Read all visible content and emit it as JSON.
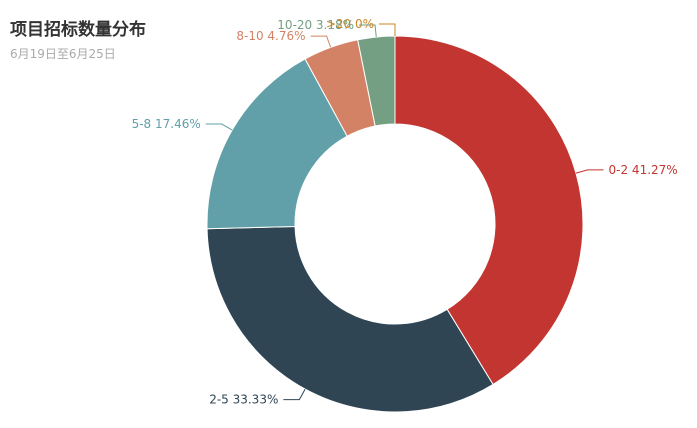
{
  "header": {
    "title": "项目招标数量分布",
    "subtitle": "6月19日至6月25日"
  },
  "chart_data": {
    "type": "pie",
    "variant": "donut",
    "title": "项目招标数量分布",
    "subtitle": "6月19日至6月25日",
    "legend": "none",
    "slices": [
      {
        "label": "0-2",
        "percent": 41.27,
        "display": "0-2 41.27%",
        "color": "#c23531"
      },
      {
        "label": "2-5",
        "percent": 33.33,
        "display": "2-5 33.33%",
        "color": "#2f4554"
      },
      {
        "label": "5-8",
        "percent": 17.46,
        "display": "5-8 17.46%",
        "color": "#61a0a8"
      },
      {
        "label": "8-10",
        "percent": 4.76,
        "display": "8-10 4.76%",
        "color": "#d48265"
      },
      {
        "label": "10-20",
        "percent": 3.18,
        "display": "10-20 3.18%",
        "color": "#749f83"
      },
      {
        "label": ">20",
        "percent": 0,
        "display": ">20 0%",
        "color": "#ca8622"
      }
    ]
  }
}
